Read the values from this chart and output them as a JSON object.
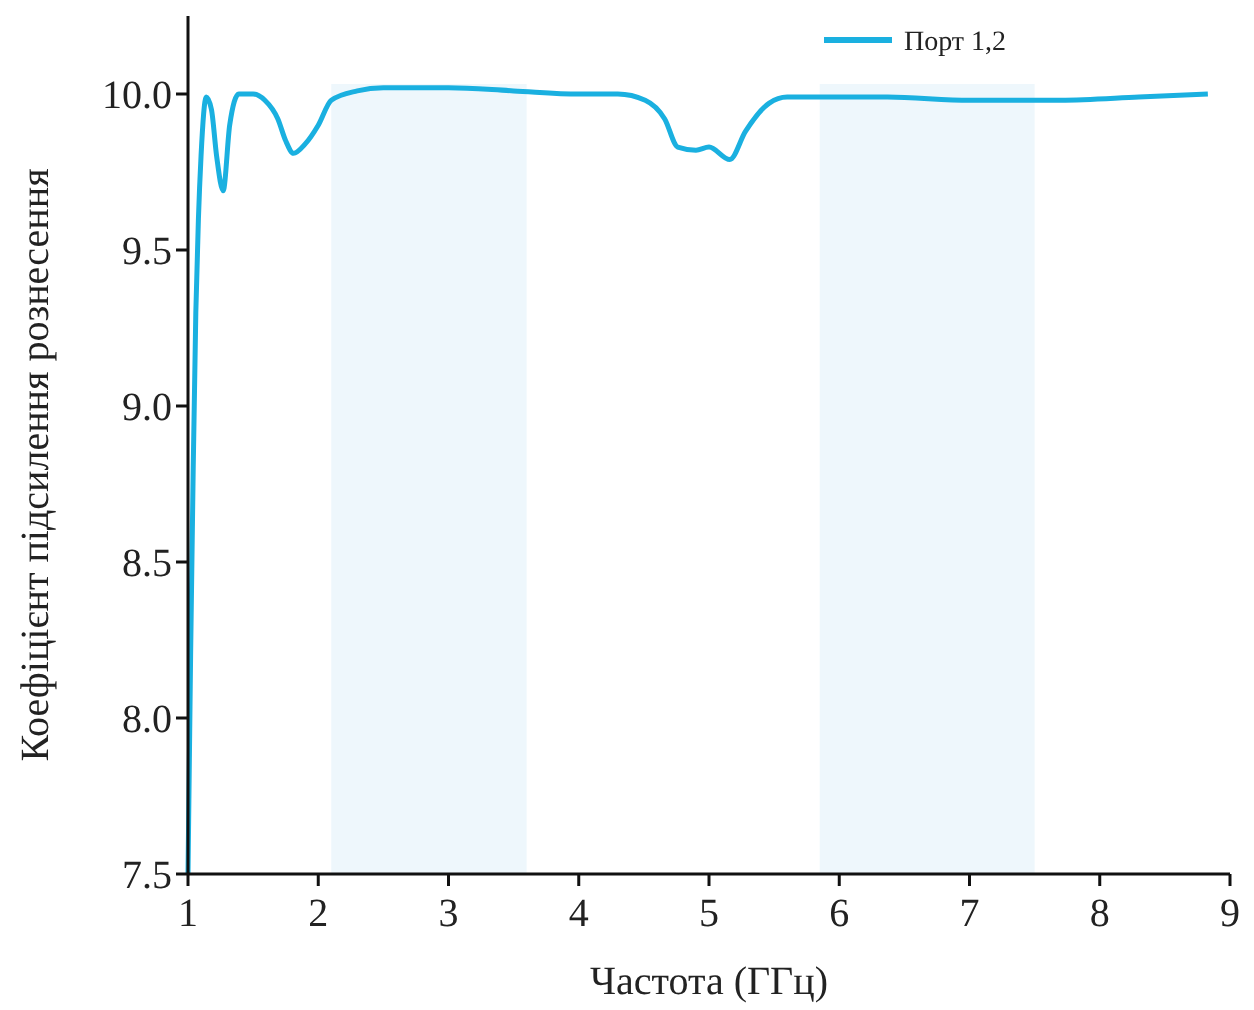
{
  "chart_data": {
    "type": "line",
    "xlabel": "Частота (ГГц)",
    "ylabel": "Коефіцієнт підсилення рознесення",
    "xlim": [
      1,
      9
    ],
    "xticks": [
      1,
      2,
      3,
      4,
      5,
      6,
      7,
      8,
      9
    ],
    "ylim": [
      7.5,
      10.25
    ],
    "yticks": [
      {
        "value": 7.5,
        "label": "7.5"
      },
      {
        "value": 8,
        "label": "8.0"
      },
      {
        "value": 8.5,
        "label": "8.5"
      },
      {
        "value": 9,
        "label": "9.0"
      },
      {
        "value": 9.5,
        "label": "9.5"
      },
      {
        "value": 10,
        "label": "10.0"
      }
    ],
    "legend": "top right",
    "grid": false,
    "bands": [
      {
        "axis": "x",
        "from": 2.1,
        "to": 3.6,
        "color": "#eef7fc"
      },
      {
        "axis": "x",
        "from": 5.85,
        "to": 7.5,
        "color": "#eef7fc"
      }
    ],
    "series": [
      {
        "name": "Порт 1,2",
        "color": "#1ab0e0",
        "x": [
          1.0,
          1.02,
          1.04,
          1.06,
          1.08,
          1.1,
          1.14,
          1.18,
          1.22,
          1.27,
          1.32,
          1.39,
          1.5,
          1.59,
          1.69,
          1.75,
          1.81,
          1.9,
          2.0,
          2.1,
          2.3,
          2.5,
          3.0,
          3.5,
          4.0,
          4.3,
          4.51,
          4.66,
          4.76,
          4.9,
          5.0,
          5.16,
          5.28,
          5.46,
          5.6,
          6.0,
          6.37,
          7.0,
          7.7,
          8.3,
          8.83
        ],
        "values": [
          7.5,
          8.2,
          8.8,
          9.3,
          9.6,
          9.8,
          9.99,
          9.95,
          9.8,
          9.69,
          9.9,
          10.0,
          10.0,
          9.98,
          9.92,
          9.85,
          9.81,
          9.84,
          9.9,
          9.98,
          10.01,
          10.02,
          10.02,
          10.01,
          10.0,
          10.0,
          9.98,
          9.92,
          9.83,
          9.82,
          9.83,
          9.79,
          9.88,
          9.97,
          9.99,
          9.99,
          9.99,
          9.98,
          9.98,
          9.99,
          10.0
        ]
      }
    ]
  }
}
